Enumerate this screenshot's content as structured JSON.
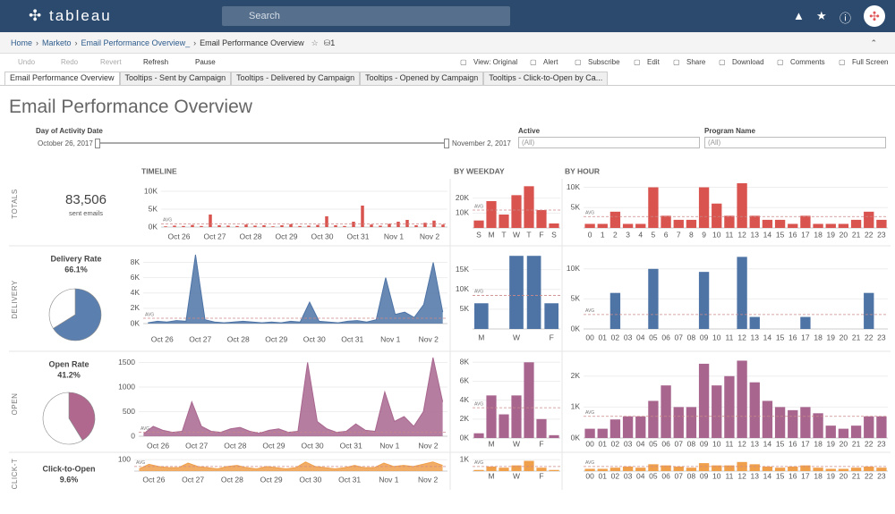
{
  "header": {
    "logo": "tableau",
    "search": "Search"
  },
  "breadcrumb": {
    "items": [
      "Home",
      "Marketo",
      "Email Performance Overview_",
      "Email Performance Overview"
    ],
    "count": "1"
  },
  "toolbar": {
    "left": [
      "Undo",
      "Redo",
      "Revert",
      "Refresh",
      "Pause"
    ],
    "right": [
      "View: Original",
      "Alert",
      "Subscribe",
      "Edit",
      "Share",
      "Download",
      "Comments",
      "Full Screen"
    ]
  },
  "tabs": [
    "Email Performance Overview",
    "Tooltips - Sent by Campaign",
    "Tooltips - Delivered by Campaign",
    "Tooltips - Opened by Campaign",
    "Tooltips - Click-to-Open by Ca..."
  ],
  "dashboard": {
    "title": "Email Performance Overview",
    "filters": {
      "date": {
        "label": "Day of Activity Date",
        "start": "October 26, 2017",
        "end": "November 2, 2017"
      },
      "active": {
        "label": "Active",
        "value": "(All)"
      },
      "program": {
        "label": "Program Name",
        "value": "(All)"
      }
    },
    "rows": [
      "TOTALS",
      "DELIVERY",
      "OPEN",
      "CLICK-T"
    ],
    "kpis": [
      {
        "value": "83,506",
        "label": "sent emails"
      },
      {
        "label": "Delivery Rate",
        "value": "66.1%"
      },
      {
        "label": "Open Rate",
        "value": "41.2%"
      },
      {
        "label": "Click-to-Open",
        "value": "9.6%"
      }
    ]
  },
  "chart_data": [
    {
      "type": "bar",
      "title": "TIMELINE",
      "color": "#d9534f",
      "categories": [
        "Oct 26",
        null,
        null,
        null,
        "Oct 27",
        null,
        null,
        null,
        "Oct 28",
        null,
        null,
        null,
        "Oct 29",
        null,
        null,
        null,
        "Oct 30",
        null,
        null,
        null,
        "Oct 31",
        null,
        null,
        null,
        "Nov 1",
        null,
        null,
        null,
        "Nov 2",
        null,
        null,
        null
      ],
      "values": [
        200,
        400,
        300,
        600,
        300,
        3500,
        500,
        400,
        300,
        700,
        400,
        500,
        200,
        500,
        800,
        300,
        400,
        600,
        3000,
        500,
        300,
        1500,
        6000,
        700,
        400,
        900,
        1500,
        2000,
        500,
        1200,
        1800,
        700
      ],
      "ylim": [
        0,
        11000
      ],
      "yticks": [
        {
          "value": 0,
          "label": "0K"
        },
        {
          "value": 5000,
          "label": "5K"
        },
        {
          "value": 10000,
          "label": "10K"
        }
      ],
      "avg": 900,
      "avg_label": "AVG"
    },
    {
      "type": "bar",
      "title": "BY WEEKDAY",
      "color": "#d9534f",
      "categories": [
        "S",
        "M",
        "T",
        "W",
        "T",
        "F",
        "S"
      ],
      "values": [
        5000,
        18000,
        9000,
        22000,
        28000,
        12000,
        3000
      ],
      "ylim": [
        0,
        30000
      ],
      "yticks": [
        {
          "value": 10000,
          "label": "10K"
        },
        {
          "value": 20000,
          "label": "20K"
        }
      ],
      "avg": 12000,
      "avg_label": "AVG"
    },
    {
      "type": "bar",
      "title": "BY HOUR",
      "color": "#d9534f",
      "categories": [
        "0",
        "1",
        "2",
        "3",
        "4",
        "5",
        "6",
        "7",
        "8",
        "9",
        "10",
        "11",
        "12",
        "13",
        "14",
        "15",
        "16",
        "17",
        "18",
        "19",
        "20",
        "21",
        "22",
        "23"
      ],
      "values": [
        1000,
        1000,
        4000,
        1000,
        1000,
        10000,
        3000,
        2000,
        2000,
        10000,
        6000,
        3000,
        11000,
        3000,
        2000,
        2000,
        1000,
        3000,
        1000,
        1000,
        1000,
        2000,
        4000,
        2000
      ],
      "ylim": [
        0,
        11000
      ],
      "yticks": [
        {
          "value": 5000,
          "label": "5K"
        },
        {
          "value": 10000,
          "label": "10K"
        }
      ],
      "avg": 2800,
      "avg_label": "AVG"
    },
    {
      "type": "area",
      "color": "#4e74a6",
      "categories": [
        "Oct 26",
        null,
        null,
        null,
        "Oct 27",
        null,
        null,
        null,
        "Oct 28",
        null,
        null,
        null,
        "Oct 29",
        null,
        null,
        null,
        "Oct 30",
        null,
        null,
        null,
        "Oct 31",
        null,
        null,
        null,
        "Nov 1",
        null,
        null,
        null,
        "Nov 2",
        null,
        null,
        null
      ],
      "values": [
        100,
        300,
        200,
        400,
        300,
        9000,
        500,
        200,
        100,
        200,
        300,
        200,
        100,
        200,
        100,
        300,
        200,
        2800,
        300,
        200,
        100,
        300,
        400,
        200,
        500,
        6000,
        1200,
        1500,
        800,
        2500,
        8000,
        1500
      ],
      "ylim": [
        0,
        9000
      ],
      "yticks": [
        {
          "value": 0,
          "label": "0K"
        },
        {
          "value": 2000,
          "label": "2K"
        },
        {
          "value": 4000,
          "label": "4K"
        },
        {
          "value": 6000,
          "label": "6K"
        },
        {
          "value": 8000,
          "label": "8K"
        }
      ],
      "avg": 700,
      "avg_label": "AVG"
    },
    {
      "type": "bar",
      "color": "#4e74a6",
      "categories": [
        "M",
        null,
        "W",
        null,
        "F"
      ],
      "values": [
        6500,
        0,
        18500,
        18500,
        6500
      ],
      "ylim": [
        0,
        19000
      ],
      "yticks": [
        {
          "value": 5000,
          "label": "5K"
        },
        {
          "value": 10000,
          "label": "10K"
        },
        {
          "value": 15000,
          "label": "15K"
        }
      ],
      "avg": 8500,
      "avg_label": "AVG"
    },
    {
      "type": "bar",
      "color": "#4e74a6",
      "categories": [
        "00",
        "01",
        "02",
        "03",
        "04",
        "05",
        "06",
        "07",
        "08",
        "09",
        "10",
        "11",
        "12",
        "13",
        "14",
        "15",
        "16",
        "17",
        "18",
        "19",
        "20",
        "21",
        "22",
        "23"
      ],
      "values": [
        0,
        0,
        6000,
        0,
        0,
        10000,
        0,
        0,
        0,
        9500,
        0,
        0,
        12000,
        2000,
        0,
        0,
        0,
        2000,
        0,
        0,
        0,
        0,
        6000,
        0
      ],
      "ylim": [
        0,
        12500
      ],
      "yticks": [
        {
          "value": 0,
          "label": "0K"
        },
        {
          "value": 5000,
          "label": "5K"
        },
        {
          "value": 10000,
          "label": "10K"
        }
      ],
      "avg": 2400,
      "avg_label": "AVG"
    },
    {
      "type": "area",
      "color": "#a8668f",
      "categories": [
        "Oct 26",
        null,
        null,
        null,
        "Oct 27",
        null,
        null,
        null,
        "Oct 28",
        null,
        null,
        null,
        "Oct 29",
        null,
        null,
        null,
        "Oct 30",
        null,
        null,
        null,
        "Oct 31",
        null,
        null,
        null,
        "Nov 1",
        null,
        null,
        null,
        "Nov 2",
        null,
        null,
        null
      ],
      "values": [
        50,
        200,
        120,
        80,
        100,
        700,
        200,
        100,
        80,
        150,
        180,
        100,
        60,
        120,
        150,
        80,
        100,
        1500,
        300,
        150,
        80,
        100,
        250,
        120,
        100,
        900,
        300,
        400,
        200,
        500,
        1600,
        700
      ],
      "ylim": [
        0,
        1600
      ],
      "yticks": [
        0,
        500,
        1000,
        1500
      ],
      "avg": 80,
      "avg_label": "AVG"
    },
    {
      "type": "bar",
      "color": "#a8668f",
      "categories": [
        null,
        "M",
        null,
        "W",
        null,
        "F",
        null
      ],
      "values": [
        500,
        4500,
        2500,
        4500,
        8000,
        2000,
        300
      ],
      "ylim": [
        0,
        8500
      ],
      "yticks": [
        {
          "value": 0,
          "label": "0K"
        },
        {
          "value": 2000,
          "label": "2K"
        },
        {
          "value": 4000,
          "label": "4K"
        },
        {
          "value": 6000,
          "label": "6K"
        },
        {
          "value": 8000,
          "label": "8K"
        }
      ],
      "avg": 3200,
      "avg_label": "AVG"
    },
    {
      "type": "bar",
      "color": "#a8668f",
      "categories": [
        "00",
        "01",
        "02",
        "03",
        "04",
        "05",
        "06",
        "07",
        "08",
        "09",
        "10",
        "11",
        "12",
        "13",
        "14",
        "15",
        "16",
        "17",
        "18",
        "19",
        "20",
        "21",
        "22",
        "23"
      ],
      "values": [
        300,
        300,
        600,
        700,
        700,
        1200,
        1700,
        1000,
        1000,
        2400,
        1700,
        2000,
        2500,
        1800,
        1200,
        1000,
        900,
        1000,
        800,
        400,
        300,
        400,
        700,
        700
      ],
      "ylim": [
        0,
        2600
      ],
      "yticks": [
        {
          "value": 0,
          "label": "0K"
        },
        {
          "value": 1000,
          "label": "1K"
        },
        {
          "value": 2000,
          "label": "2K"
        }
      ],
      "avg": 700,
      "avg_label": "AVG"
    },
    {
      "type": "area",
      "color": "#f0a04b",
      "categories": [
        "Oct 26",
        null,
        null,
        null,
        "Oct 27",
        null,
        null,
        null,
        "Oct 28",
        null,
        null,
        null,
        "Oct 29",
        null,
        null,
        null,
        "Oct 30",
        null,
        null,
        null,
        "Oct 31",
        null,
        null,
        null,
        "Nov 1",
        null,
        null,
        null,
        "Nov 2",
        null,
        null,
        null
      ],
      "values": [
        20,
        60,
        40,
        30,
        30,
        70,
        40,
        30,
        20,
        40,
        50,
        30,
        20,
        40,
        30,
        20,
        30,
        80,
        40,
        30,
        20,
        30,
        50,
        30,
        30,
        70,
        40,
        50,
        40,
        60,
        80,
        50
      ],
      "ylim": [
        0,
        110
      ],
      "yticks": [
        100
      ],
      "avg": 40,
      "avg_label": "AVG"
    },
    {
      "type": "bar",
      "color": "#f0a04b",
      "categories": [
        null,
        "M",
        null,
        "W",
        null,
        "F",
        null
      ],
      "values": [
        100,
        400,
        300,
        500,
        900,
        300,
        100
      ],
      "ylim": [
        0,
        1100
      ],
      "yticks": [
        {
          "value": 1000,
          "label": "1K"
        }
      ],
      "avg": 400,
      "avg_label": "AVG"
    },
    {
      "type": "bar",
      "color": "#f0a04b",
      "categories": [
        "00",
        "01",
        "02",
        "03",
        "04",
        "05",
        "06",
        "07",
        "08",
        "09",
        "10",
        "11",
        "12",
        "13",
        "14",
        "15",
        "16",
        "17",
        "18",
        "19",
        "20",
        "21",
        "22",
        "23"
      ],
      "values": [
        20,
        20,
        30,
        40,
        30,
        60,
        50,
        40,
        30,
        70,
        50,
        50,
        80,
        60,
        40,
        30,
        40,
        50,
        30,
        20,
        20,
        30,
        40,
        30
      ],
      "ylim": [
        0,
        110
      ],
      "yticks": [],
      "avg": 40,
      "avg_label": "AVG"
    },
    {
      "type": "pie",
      "colors": [
        "#5b80b0",
        "#ffffff"
      ],
      "values": [
        66.1,
        33.9
      ]
    },
    {
      "type": "pie",
      "colors": [
        "#b0688f",
        "#ffffff"
      ],
      "values": [
        41.2,
        58.8
      ]
    }
  ]
}
